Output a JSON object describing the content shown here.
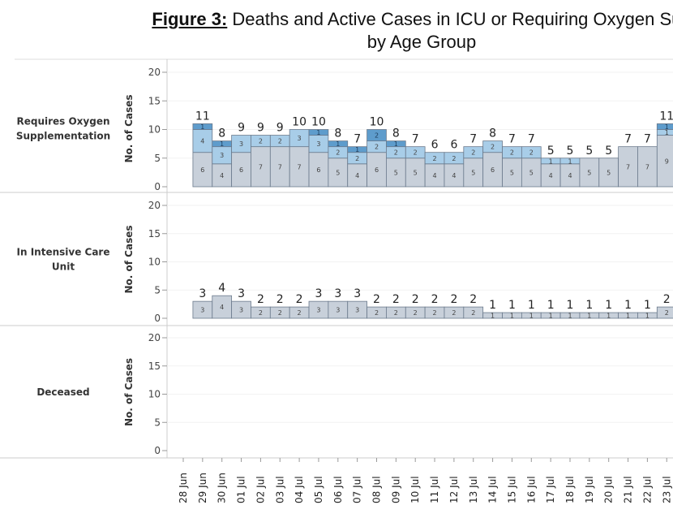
{
  "chart_data": {
    "type": "bar",
    "stacked": true,
    "title_prefix": "Figure 3:",
    "title_line1": "Deaths and Active Cases in ICU or Requiring Oxygen Sup",
    "title_line2": "by Age Group",
    "ylabel": "No. of Cases",
    "ylim": [
      0,
      20
    ],
    "yticks": [
      0,
      5,
      10,
      15,
      20
    ],
    "grid": true,
    "categories": [
      "28 Jun",
      "29 Jun",
      "30 Jun",
      "01 Jul",
      "02 Jul",
      "03 Jul",
      "04 Jul",
      "05 Jul",
      "06 Jul",
      "07 Jul",
      "08 Jul",
      "09 Jul",
      "10 Jul",
      "11 Jul",
      "12 Jul",
      "13 Jul",
      "14 Jul",
      "15 Jul",
      "16 Jul",
      "17 Jul",
      "18 Jul",
      "19 Jul",
      "20 Jul",
      "21 Jul",
      "22 Jul",
      "23 Jul"
    ],
    "colors": [
      "#c8d0da",
      "#a8cde8",
      "#5e9ccc"
    ],
    "panels": [
      {
        "label": "Requires Oxygen Supplementation",
        "segments": [
          [
            0,
            0,
            0
          ],
          [
            6,
            4,
            1
          ],
          [
            4,
            3,
            1
          ],
          [
            6,
            3,
            0
          ],
          [
            7,
            2,
            0
          ],
          [
            7,
            2,
            0
          ],
          [
            7,
            3,
            0
          ],
          [
            6,
            3,
            1
          ],
          [
            5,
            2,
            1
          ],
          [
            4,
            2,
            1
          ],
          [
            6,
            2,
            2
          ],
          [
            5,
            2,
            1
          ],
          [
            5,
            2,
            0
          ],
          [
            4,
            2,
            0
          ],
          [
            4,
            2,
            0
          ],
          [
            5,
            2,
            0
          ],
          [
            6,
            2,
            0
          ],
          [
            5,
            2,
            0
          ],
          [
            5,
            2,
            0
          ],
          [
            4,
            1,
            0
          ],
          [
            4,
            1,
            0
          ],
          [
            5,
            0,
            0
          ],
          [
            5,
            0,
            0
          ],
          [
            7,
            0,
            0
          ],
          [
            7,
            0,
            0
          ],
          [
            9,
            1,
            1
          ]
        ],
        "totals": [
          null,
          11,
          8,
          9,
          9,
          9,
          10,
          10,
          8,
          7,
          10,
          8,
          7,
          6,
          6,
          7,
          8,
          7,
          7,
          5,
          5,
          5,
          5,
          7,
          7,
          11
        ]
      },
      {
        "label": "In Intensive Care Unit",
        "segments": [
          [
            0
          ],
          [
            3
          ],
          [
            4
          ],
          [
            3
          ],
          [
            2
          ],
          [
            2
          ],
          [
            2
          ],
          [
            3
          ],
          [
            3
          ],
          [
            3
          ],
          [
            2
          ],
          [
            2
          ],
          [
            2
          ],
          [
            2
          ],
          [
            2
          ],
          [
            2
          ],
          [
            1
          ],
          [
            1
          ],
          [
            1
          ],
          [
            1
          ],
          [
            1
          ],
          [
            1
          ],
          [
            1
          ],
          [
            1
          ],
          [
            1
          ],
          [
            2
          ]
        ],
        "totals": [
          null,
          3,
          4,
          3,
          2,
          2,
          2,
          3,
          3,
          3,
          2,
          2,
          2,
          2,
          2,
          2,
          1,
          1,
          1,
          1,
          1,
          1,
          1,
          1,
          1,
          2
        ]
      },
      {
        "label": "Deceased",
        "segments": [],
        "totals": []
      }
    ]
  }
}
